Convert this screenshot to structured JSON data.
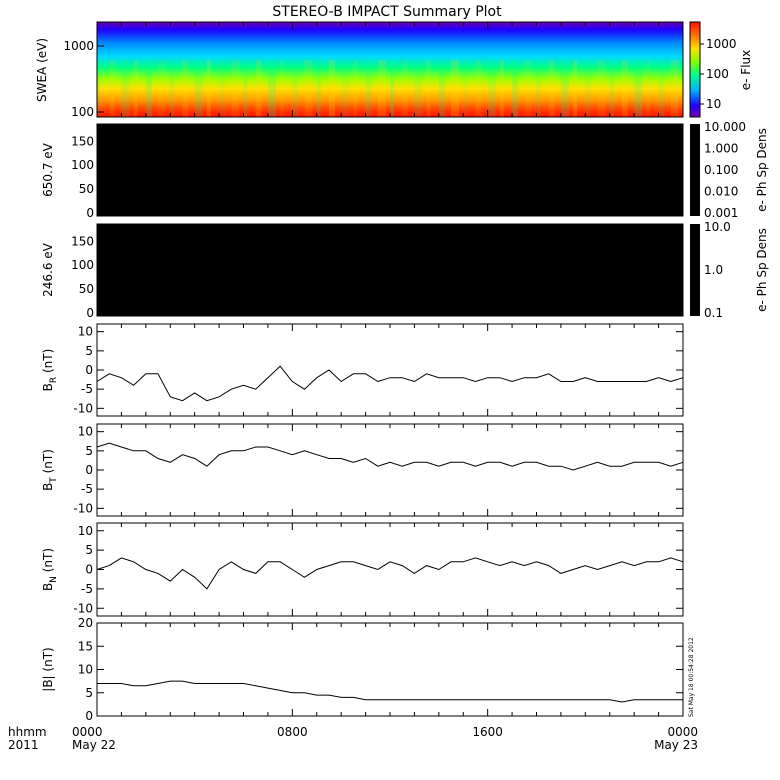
{
  "title": "STEREO-B IMPACT Summary Plot",
  "time_axis": {
    "row1_label": "hhmm",
    "row2_label": "2011",
    "ticks": [
      {
        "hour": 0,
        "label": "0000",
        "sublabel": "May 22"
      },
      {
        "hour": 8,
        "label": "0800",
        "sublabel": ""
      },
      {
        "hour": 16,
        "label": "1600",
        "sublabel": ""
      },
      {
        "hour": 24,
        "label": "0000",
        "sublabel": "May 23"
      }
    ]
  },
  "timestamp": "Sat May 18 00:54:28 2012",
  "colors": {
    "axis": "#000000",
    "trace": "#000000",
    "spectrogram_scale": [
      "#5a00a0",
      "#0000ff",
      "#00c8ff",
      "#00ff7f",
      "#c8ff00",
      "#ffd200",
      "#ff7800",
      "#ff1e00"
    ],
    "empty_panel": "#000000"
  },
  "chart_data": [
    {
      "type": "heatmap",
      "id": "swea",
      "ylabel": "SWEA (eV)",
      "yscale": "log",
      "yticks": [
        "100",
        "1000"
      ],
      "colorbar": {
        "label": "e- Flux",
        "scale": "log",
        "ticks": [
          "10",
          "100",
          "1000"
        ]
      },
      "description_bands": [
        {
          "energy_ev": 1700,
          "flux_level": "10"
        },
        {
          "energy_ev": 1000,
          "flux_level": "100"
        },
        {
          "energy_ev": 400,
          "flux_level": "1000"
        },
        {
          "energy_ev": 150,
          "flux_level": "5000"
        },
        {
          "energy_ev": 100,
          "flux_level": "10000"
        }
      ]
    },
    {
      "type": "heatmap",
      "id": "pad650",
      "ylabel": "650.7 eV",
      "yticks": [
        "0",
        "50",
        "100",
        "150"
      ],
      "ylim": [
        0,
        180
      ],
      "colorbar": {
        "label": "e- Ph Sp Dens",
        "scale": "log",
        "ticks": [
          "10.000",
          "1.000",
          "0.100",
          "0.010",
          "0.001"
        ]
      },
      "fill": "black"
    },
    {
      "type": "heatmap",
      "id": "pad246",
      "ylabel": "246.6 eV",
      "yticks": [
        "0",
        "50",
        "100",
        "150"
      ],
      "ylim": [
        0,
        180
      ],
      "colorbar": {
        "label": "e- Ph Sp Dens",
        "scale": "log",
        "ticks": [
          "10.0",
          "1.0",
          "0.1"
        ]
      },
      "fill": "black"
    },
    {
      "type": "line",
      "id": "br",
      "ylabel_main": "B",
      "ylabel_sub": "R",
      "ylabel_unit": "(nT)",
      "ylim": [
        -12,
        12
      ],
      "yticks": [
        "-10",
        "-5",
        "0",
        "5",
        "10"
      ],
      "x_hours": [
        0,
        0.5,
        1,
        1.5,
        2,
        2.5,
        3,
        3.5,
        4,
        4.5,
        5,
        5.5,
        6,
        6.5,
        7,
        7.5,
        8,
        8.5,
        9,
        9.5,
        10,
        10.5,
        11,
        11.5,
        12,
        12.5,
        13,
        13.5,
        14,
        14.5,
        15,
        15.5,
        16,
        16.5,
        17,
        17.5,
        18,
        18.5,
        19,
        19.5,
        20,
        20.5,
        21,
        21.5,
        22,
        22.5,
        23,
        23.5,
        24
      ],
      "y": [
        -3,
        -1,
        -2,
        -4,
        -1,
        -1,
        -7,
        -8,
        -6,
        -8,
        -7,
        -5,
        -4,
        -5,
        -2,
        1,
        -3,
        -5,
        -2,
        0,
        -3,
        -1,
        -1,
        -3,
        -2,
        -2,
        -3,
        -1,
        -2,
        -2,
        -2,
        -3,
        -2,
        -2,
        -3,
        -2,
        -2,
        -1,
        -3,
        -3,
        -2,
        -3,
        -3,
        -3,
        -3,
        -3,
        -2,
        -3,
        -2
      ]
    },
    {
      "type": "line",
      "id": "bt",
      "ylabel_main": "B",
      "ylabel_sub": "T",
      "ylabel_unit": "(nT)",
      "ylim": [
        -12,
        12
      ],
      "yticks": [
        "-10",
        "-5",
        "0",
        "5",
        "10"
      ],
      "x_hours": [
        0,
        0.5,
        1,
        1.5,
        2,
        2.5,
        3,
        3.5,
        4,
        4.5,
        5,
        5.5,
        6,
        6.5,
        7,
        7.5,
        8,
        8.5,
        9,
        9.5,
        10,
        10.5,
        11,
        11.5,
        12,
        12.5,
        13,
        13.5,
        14,
        14.5,
        15,
        15.5,
        16,
        16.5,
        17,
        17.5,
        18,
        18.5,
        19,
        19.5,
        20,
        20.5,
        21,
        21.5,
        22,
        22.5,
        23,
        23.5,
        24
      ],
      "y": [
        6,
        7,
        6,
        5,
        5,
        3,
        2,
        4,
        3,
        1,
        4,
        5,
        5,
        6,
        6,
        5,
        4,
        5,
        4,
        3,
        3,
        2,
        3,
        1,
        2,
        1,
        2,
        2,
        1,
        2,
        2,
        1,
        2,
        2,
        1,
        2,
        2,
        1,
        1,
        0,
        1,
        2,
        1,
        1,
        2,
        2,
        2,
        1,
        2
      ]
    },
    {
      "type": "line",
      "id": "bn",
      "ylabel_main": "B",
      "ylabel_sub": "N",
      "ylabel_unit": "(nT)",
      "ylim": [
        -12,
        12
      ],
      "yticks": [
        "-10",
        "-5",
        "0",
        "5",
        "10"
      ],
      "x_hours": [
        0,
        0.5,
        1,
        1.5,
        2,
        2.5,
        3,
        3.5,
        4,
        4.5,
        5,
        5.5,
        6,
        6.5,
        7,
        7.5,
        8,
        8.5,
        9,
        9.5,
        10,
        10.5,
        11,
        11.5,
        12,
        12.5,
        13,
        13.5,
        14,
        14.5,
        15,
        15.5,
        16,
        16.5,
        17,
        17.5,
        18,
        18.5,
        19,
        19.5,
        20,
        20.5,
        21,
        21.5,
        22,
        22.5,
        23,
        23.5,
        24
      ],
      "y": [
        0,
        1,
        3,
        2,
        0,
        -1,
        -3,
        0,
        -2,
        -5,
        0,
        2,
        0,
        -1,
        2,
        2,
        0,
        -2,
        0,
        1,
        2,
        2,
        1,
        0,
        2,
        1,
        -1,
        1,
        0,
        2,
        2,
        3,
        2,
        1,
        2,
        1,
        2,
        1,
        -1,
        0,
        1,
        0,
        1,
        2,
        1,
        2,
        2,
        3,
        2
      ]
    },
    {
      "type": "line",
      "id": "bmag",
      "ylabel_main": "|B|",
      "ylabel_sub": "",
      "ylabel_unit": "(nT)",
      "ylim": [
        0,
        20
      ],
      "yticks": [
        "0",
        "5",
        "10",
        "15",
        "20"
      ],
      "x_hours": [
        0,
        0.5,
        1,
        1.5,
        2,
        2.5,
        3,
        3.5,
        4,
        4.5,
        5,
        5.5,
        6,
        6.5,
        7,
        7.5,
        8,
        8.5,
        9,
        9.5,
        10,
        10.5,
        11,
        11.5,
        12,
        12.5,
        13,
        13.5,
        14,
        14.5,
        15,
        15.5,
        16,
        16.5,
        17,
        17.5,
        18,
        18.5,
        19,
        19.5,
        20,
        20.5,
        21,
        21.5,
        22,
        22.5,
        23,
        23.5,
        24
      ],
      "y": [
        7,
        7,
        7,
        6.5,
        6.5,
        7,
        7.5,
        7.5,
        7,
        7,
        7,
        7,
        7,
        6.5,
        6,
        5.5,
        5,
        5,
        4.5,
        4.5,
        4,
        4,
        3.5,
        3.5,
        3.5,
        3.5,
        3.5,
        3.5,
        3.5,
        3.5,
        3.5,
        3.5,
        3.5,
        3.5,
        3.5,
        3.5,
        3.5,
        3.5,
        3.5,
        3.5,
        3.5,
        3.5,
        3.5,
        3,
        3.5,
        3.5,
        3.5,
        3.5,
        3.5
      ]
    }
  ]
}
